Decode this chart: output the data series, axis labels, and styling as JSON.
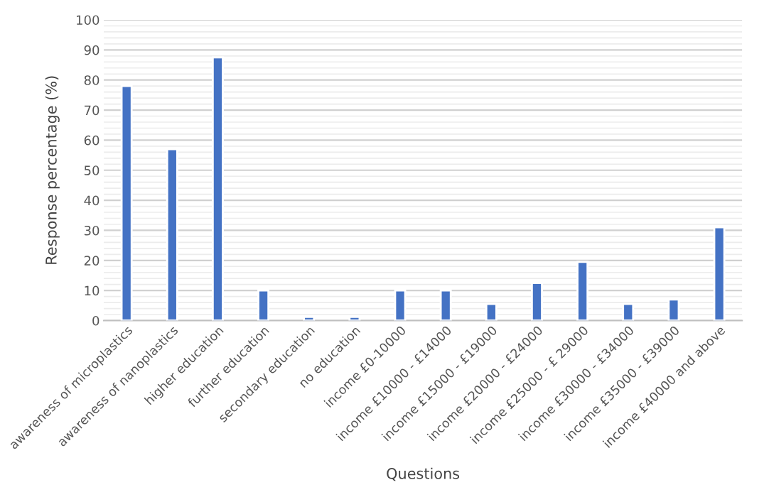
{
  "chart_data": {
    "type": "bar",
    "xlabel": "Questions",
    "ylabel": "Response percentage (%)",
    "categories": [
      "awareness of microplastics",
      "awareness of nanoplastics",
      "higher education",
      "further education",
      "secondary education",
      "no education",
      "income £0-10000",
      "income £10000 - £14000",
      "income £15000 - £19000",
      "income £20000 - £24000",
      "income £25000 - £ 29000",
      "income £30000 - £34000",
      "income £35000 - £39000",
      "income £40000 and above"
    ],
    "values": [
      78,
      57,
      87.5,
      10,
      1.2,
      1.2,
      10,
      10,
      5.5,
      12.5,
      19.5,
      5.5,
      7,
      31
    ],
    "color": "#4472c4",
    "ylim": [
      0,
      100
    ],
    "yticks": [
      0,
      10,
      20,
      30,
      40,
      50,
      60,
      70,
      80,
      90,
      100
    ],
    "grid": "y",
    "legend": false
  }
}
